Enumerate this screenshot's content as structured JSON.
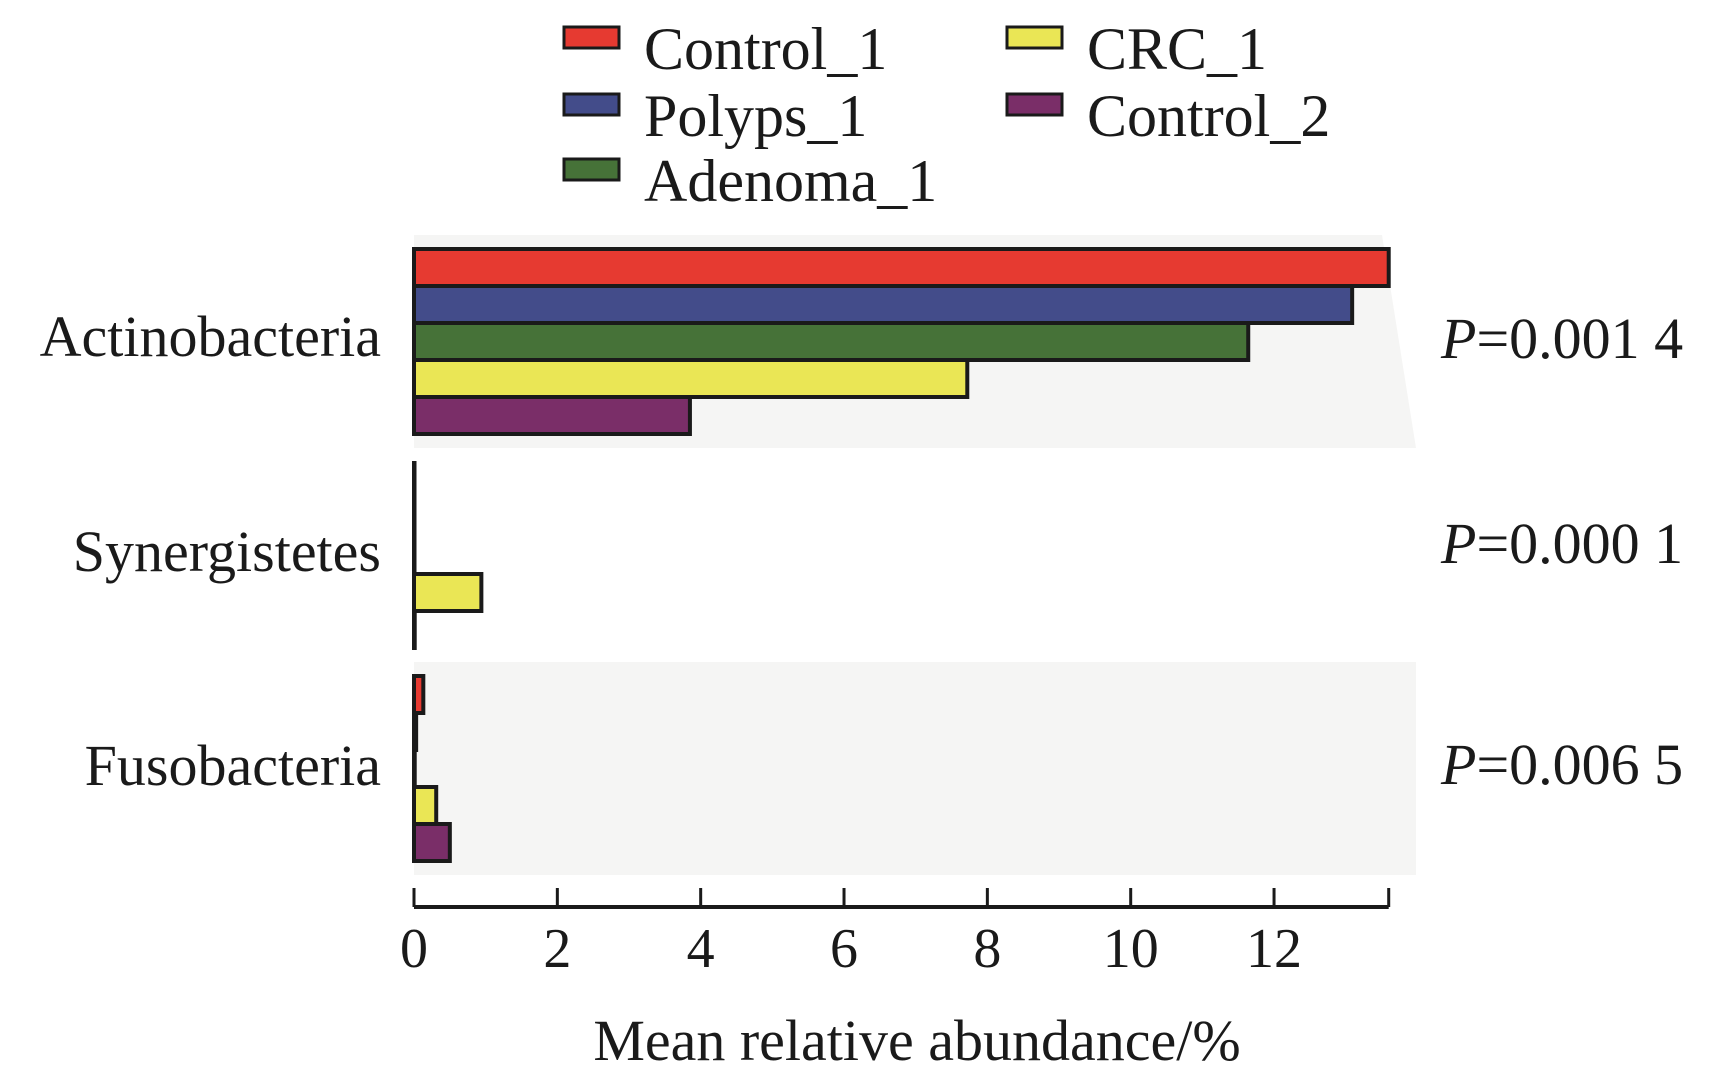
{
  "chart_data": {
    "type": "bar",
    "orientation": "horizontal",
    "title": "",
    "xlabel": "Mean relative abundance/%",
    "ylabel": "",
    "xlim": [
      0,
      13.6
    ],
    "x_ticks": [
      0,
      2,
      4,
      6,
      8,
      10,
      12
    ],
    "x_tick_labels": [
      "0",
      "2",
      "4",
      "6",
      "8",
      "10",
      "12"
    ],
    "grid": false,
    "legend_position": "top",
    "categories": [
      "Actinobacteria",
      "Synergistetes",
      "Fusobacteria"
    ],
    "series": [
      {
        "name": "Control_1",
        "color": "#E63A31",
        "values": [
          13.6,
          0.0,
          0.13
        ]
      },
      {
        "name": "Polyps_1",
        "color": "#434C8A",
        "values": [
          13.09,
          0.0,
          0.03
        ]
      },
      {
        "name": "Adenoma_1",
        "color": "#467238",
        "values": [
          11.64,
          0.0,
          0.01
        ]
      },
      {
        "name": "CRC_1",
        "color": "#EAE655",
        "values": [
          7.72,
          0.94,
          0.31
        ]
      },
      {
        "name": "Control_2",
        "color": "#7A2E68",
        "values": [
          3.85,
          0.01,
          0.5
        ]
      }
    ],
    "annotations": [
      {
        "category": "Actinobacteria",
        "p_italic": "P",
        "p_text": "=0.001 4"
      },
      {
        "category": "Synergistetes",
        "p_italic": "P",
        "p_text": "=0.000 1"
      },
      {
        "category": "Fusobacteria",
        "p_italic": "P",
        "p_text": "=0.006 5"
      }
    ],
    "highlighted_categories": [
      "Actinobacteria",
      "Fusobacteria"
    ]
  },
  "colors": {
    "band": "#F5F5F4",
    "stroke": "#1a1a1a"
  }
}
